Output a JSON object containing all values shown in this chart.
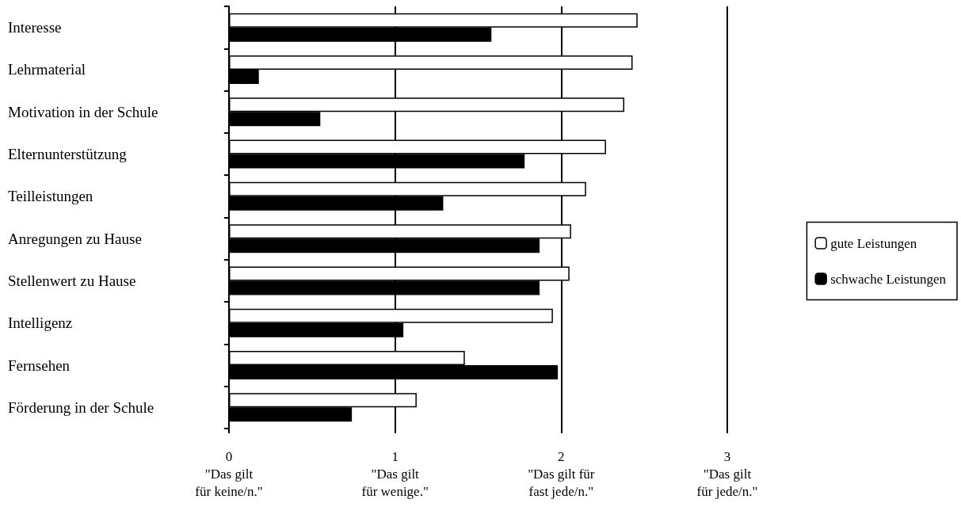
{
  "chart_data": {
    "type": "bar",
    "orientation": "horizontal",
    "categories": [
      "Interesse",
      "Lehrmaterial",
      "Motivation in der Schule",
      "Elternunterstützung",
      "Teilleistungen",
      "Anregungen zu Hause",
      "Stellenwert zu Hause",
      "Intelligenz",
      "Fernsehen",
      "Förderung in der Schule"
    ],
    "series": [
      {
        "name": "gute Leistungen",
        "color": "#ffffff",
        "values": [
          2.46,
          2.43,
          2.38,
          2.27,
          2.15,
          2.06,
          2.05,
          1.95,
          1.42,
          1.13
        ]
      },
      {
        "name": "schwache Leistungen",
        "color": "#000000",
        "values": [
          1.58,
          0.18,
          0.55,
          1.78,
          1.29,
          1.87,
          1.87,
          1.05,
          1.98,
          0.74
        ]
      }
    ],
    "xlim": [
      0,
      3
    ],
    "xticks": [
      {
        "value": 0,
        "label": "0\n\"Das gilt\nfür keine/n.\""
      },
      {
        "value": 1,
        "label": "1\n\"Das gilt\nfür wenige.\""
      },
      {
        "value": 2,
        "label": "2\n\"Das gilt für\nfast jede/n.\""
      },
      {
        "value": 3,
        "label": "3\n\"Das gilt\nfür jede/n.\""
      }
    ],
    "grid": "x",
    "legend": "right"
  }
}
